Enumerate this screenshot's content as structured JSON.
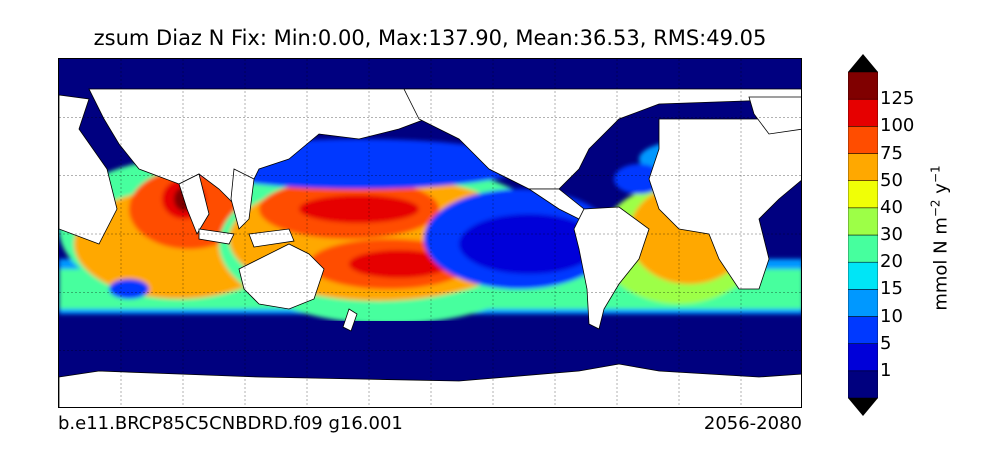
{
  "title": "zsum Diaz N Fix: Min:0.00, Max:137.90, Mean:36.53, RMS:49.05",
  "footer": {
    "case": "b.e11.BRCP85C5CNBDRD.f09 g16.001",
    "years": "2056-2080"
  },
  "colorbar": {
    "unit_base": "mmol N m",
    "unit_exp1": "−2",
    "unit_mid": " y",
    "unit_exp2": "−1",
    "labels": [
      "1",
      "5",
      "10",
      "15",
      "20",
      "30",
      "40",
      "50",
      "75",
      "100",
      "125"
    ],
    "colors": [
      "#00007f",
      "#0000d9",
      "#0039ff",
      "#0098ff",
      "#00e5f6",
      "#46ff9e",
      "#9dff47",
      "#f0ff06",
      "#ffa800",
      "#ff4d00",
      "#e60000",
      "#800000"
    ],
    "under_color": "#000000",
    "over_color": "#000000"
  },
  "map": {
    "land_color": "#ffffff",
    "ocean_base_color": "#000080",
    "grid": "dashed"
  }
}
